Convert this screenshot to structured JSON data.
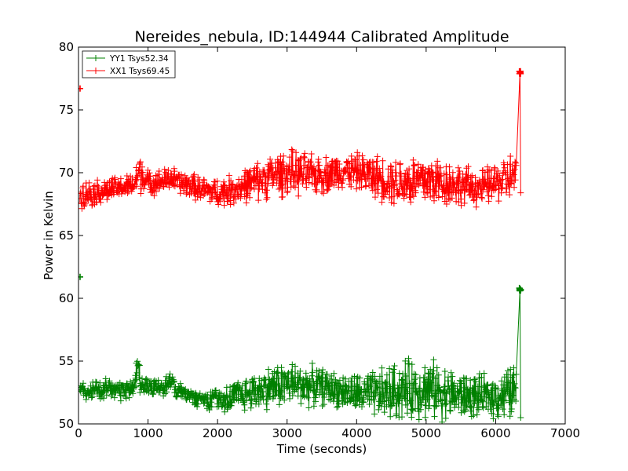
{
  "chart_data": {
    "type": "line",
    "title": "Nereides_nebula, ID:144944 Calibrated Amplitude",
    "xlabel": "Time (seconds)",
    "ylabel": "Power in Kelvin",
    "xlim": [
      0,
      7000
    ],
    "ylim": [
      50,
      80
    ],
    "xticks": [
      0,
      1000,
      2000,
      3000,
      4000,
      5000,
      6000,
      7000
    ],
    "yticks": [
      50,
      55,
      60,
      65,
      70,
      75,
      80
    ],
    "xtick_labels": [
      "0",
      "1000",
      "2000",
      "3000",
      "4000",
      "5000",
      "6000",
      "7000"
    ],
    "ytick_labels": [
      "50",
      "55",
      "60",
      "65",
      "70",
      "75",
      "80"
    ],
    "legend_position": "top-left",
    "series": [
      {
        "name": "YY1 Tsys52.34",
        "color": "#008000",
        "marker": "+",
        "x": [
          20,
          200,
          400,
          600,
          800,
          850,
          900,
          950,
          1000,
          1200,
          1350,
          1400,
          1600,
          1800,
          2000,
          2200,
          2400,
          2600,
          2800,
          3000,
          3200,
          3400,
          3600,
          3800,
          4000,
          4200,
          4400,
          4600,
          4800,
          5000,
          5200,
          5400,
          5600,
          5800,
          6000,
          6200,
          6300,
          6350,
          6360
        ],
        "y_center": [
          52.6,
          52.6,
          52.7,
          52.7,
          52.9,
          55.0,
          53.4,
          53.2,
          53.0,
          52.8,
          53.6,
          52.6,
          52.3,
          52.0,
          52.0,
          52.1,
          52.4,
          52.7,
          53.0,
          53.2,
          53.1,
          53.0,
          52.9,
          52.6,
          52.4,
          52.3,
          52.4,
          52.6,
          52.8,
          52.8,
          52.6,
          52.3,
          52.2,
          52.2,
          52.2,
          52.4,
          52.8,
          60.7,
          50.5
        ],
        "y_spread": [
          1.0,
          1.0,
          0.9,
          0.9,
          0.9,
          2.8,
          1.2,
          1.0,
          0.9,
          0.8,
          0.8,
          0.8,
          0.8,
          0.9,
          1.1,
          1.3,
          1.6,
          1.8,
          2.0,
          2.1,
          2.0,
          1.8,
          1.6,
          1.6,
          1.8,
          2.1,
          2.4,
          2.7,
          2.8,
          2.8,
          2.6,
          2.3,
          2.0,
          1.9,
          2.0,
          2.5,
          3.0,
          0.5,
          0.3
        ],
        "outliers": [
          [
            0,
            61.7
          ]
        ]
      },
      {
        "name": "XX1 Tsys69.45",
        "color": "#ff0000",
        "marker": "+",
        "x": [
          20,
          200,
          400,
          600,
          800,
          850,
          900,
          950,
          1000,
          1200,
          1350,
          1400,
          1600,
          1800,
          2000,
          2200,
          2400,
          2600,
          2800,
          3000,
          3200,
          3400,
          3600,
          3800,
          4000,
          4200,
          4400,
          4600,
          4800,
          5000,
          5200,
          5400,
          5600,
          5800,
          6000,
          6200,
          6300,
          6350,
          6360
        ],
        "y_center": [
          68.3,
          68.4,
          68.6,
          68.8,
          69.0,
          69.8,
          70.1,
          69.5,
          69.2,
          69.3,
          69.6,
          69.3,
          69.0,
          68.6,
          68.4,
          68.6,
          69.0,
          69.4,
          69.8,
          70.0,
          69.9,
          69.8,
          69.9,
          70.2,
          70.1,
          69.8,
          69.5,
          69.3,
          69.3,
          69.4,
          69.3,
          69.1,
          68.9,
          68.8,
          69.2,
          69.6,
          69.8,
          78.0,
          68.4
        ],
        "y_spread": [
          1.2,
          1.2,
          1.1,
          1.0,
          1.1,
          1.8,
          2.0,
          1.2,
          1.1,
          1.1,
          1.1,
          1.1,
          1.1,
          1.2,
          1.3,
          1.4,
          1.6,
          1.8,
          2.0,
          2.1,
          2.0,
          1.8,
          1.7,
          1.6,
          1.7,
          1.9,
          2.1,
          2.3,
          2.5,
          2.5,
          2.3,
          2.0,
          1.8,
          1.7,
          1.8,
          2.2,
          2.5,
          0.4,
          0.3
        ],
        "outliers": [
          [
            0,
            76.7
          ]
        ]
      }
    ]
  }
}
